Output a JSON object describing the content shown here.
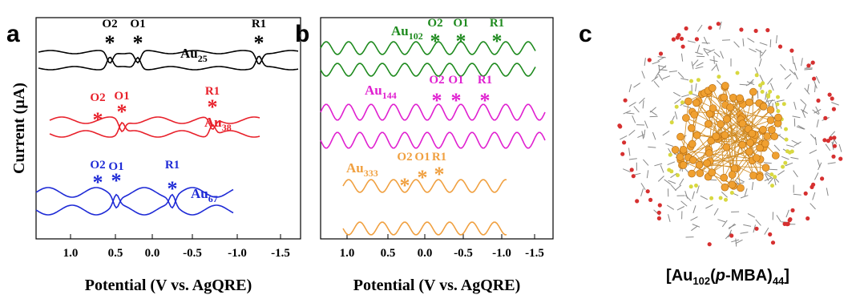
{
  "panels": [
    {
      "label": "a",
      "y_label": "Current (µA)",
      "x_label": "Potential (V vs. AgQRE)",
      "ticks": [
        "1.0",
        "0.5",
        "0.0",
        "-0.5",
        "-1.0",
        "-1.5"
      ],
      "traces": [
        {
          "name": {
            "base": "Au",
            "sub": "25"
          },
          "peaks": [
            {
              "label": "O2",
              "mark": "*"
            },
            {
              "label": "O1",
              "mark": "*"
            },
            {
              "label": "R1",
              "mark": "*"
            }
          ]
        },
        {
          "name": {
            "base": "Au",
            "sub": "38"
          },
          "peaks": [
            {
              "label": "O2",
              "mark": "*"
            },
            {
              "label": "O1",
              "mark": "*"
            },
            {
              "label": "R1",
              "mark": "*"
            }
          ]
        },
        {
          "name": {
            "base": "Au",
            "sub": "67"
          },
          "peaks": [
            {
              "label": "O2",
              "mark": "*"
            },
            {
              "label": "O1",
              "mark": "*"
            },
            {
              "label": "R1",
              "mark": "*"
            }
          ]
        }
      ]
    },
    {
      "label": "b",
      "x_label": "Potential (V vs. AgQRE)",
      "ticks": [
        "1.0",
        "0.5",
        "0.0",
        "-0.5",
        "-1.0",
        "-1.5"
      ],
      "traces": [
        {
          "name": {
            "base": "Au",
            "sub": "102"
          },
          "peaks": [
            {
              "label": "O2",
              "mark": "*"
            },
            {
              "label": "O1",
              "mark": "*"
            },
            {
              "label": "R1",
              "mark": "*"
            }
          ]
        },
        {
          "name": {
            "base": "Au",
            "sub": "144"
          },
          "peaks": [
            {
              "label": "O2",
              "mark": "*"
            },
            {
              "label": "O1",
              "mark": "*"
            },
            {
              "label": "R1",
              "mark": "*"
            }
          ]
        },
        {
          "name": {
            "base": "Au",
            "sub": "333"
          },
          "peaks": [
            {
              "label": "O2",
              "mark": "*"
            },
            {
              "label": "O1",
              "mark": "*"
            },
            {
              "label": "R1",
              "mark": "*"
            }
          ]
        }
      ]
    },
    {
      "label": "c",
      "caption": [
        "[Au",
        "102",
        "(",
        "p",
        "-MBA)",
        "44",
        "]"
      ]
    }
  ]
}
